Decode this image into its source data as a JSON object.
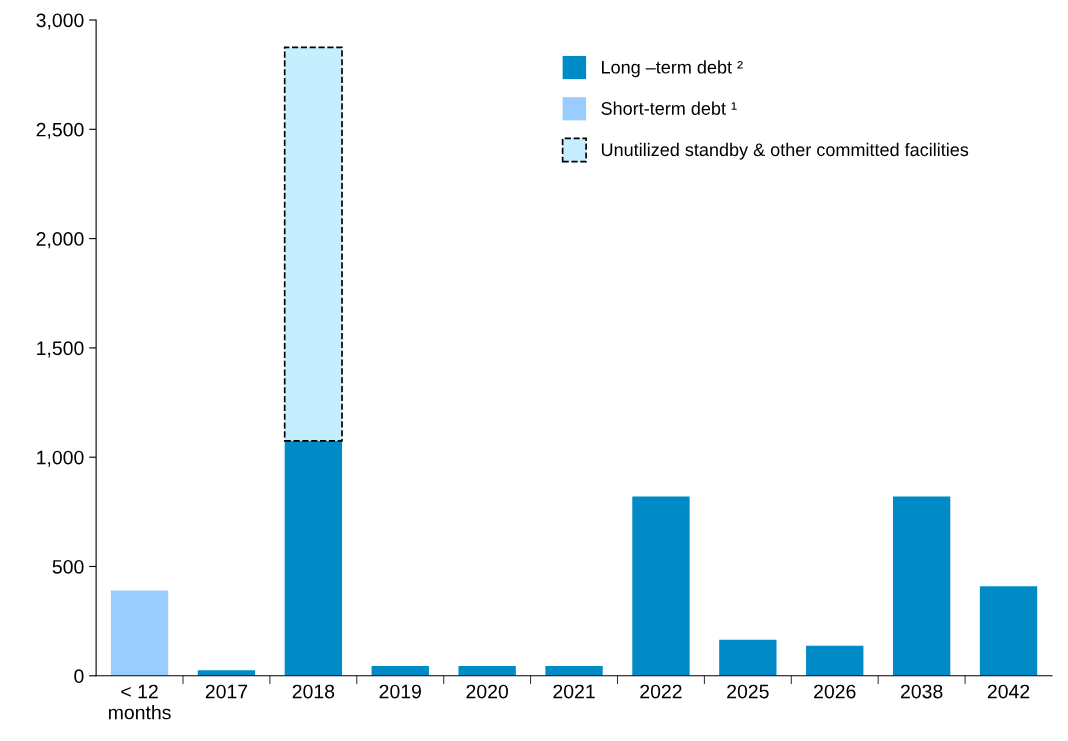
{
  "chart_data": {
    "type": "bar",
    "stacked": true,
    "categories": [
      "< 12\nmonths",
      "2017",
      "2018",
      "2019",
      "2020",
      "2021",
      "2022",
      "2025",
      "2026",
      "2038",
      "2042"
    ],
    "series": [
      {
        "name": "Long –term debt ²",
        "color": "#008bc6",
        "values": [
          null,
          25,
          1075,
          45,
          45,
          45,
          820,
          165,
          137,
          820,
          410
        ]
      },
      {
        "name": "Short-term debt ¹",
        "color": "#99ccff",
        "values": [
          390,
          null,
          null,
          null,
          null,
          null,
          null,
          null,
          null,
          null,
          null
        ]
      },
      {
        "name": "Unutilized standby & other committed facilities",
        "color": "#c5eeff",
        "line_style": "dashed",
        "values": [
          null,
          null,
          1800,
          null,
          null,
          null,
          null,
          null,
          null,
          null,
          null
        ]
      }
    ],
    "ylim": [
      0,
      3000
    ],
    "yticks": [
      0,
      {
        "value": 500,
        "label": "500"
      },
      {
        "value": 1000,
        "label": "1,000"
      },
      {
        "value": 1500,
        "label": "1,500"
      },
      {
        "value": 2000,
        "label": "2,000"
      },
      {
        "value": 2500,
        "label": "2,500"
      },
      {
        "value": 3000,
        "label": "3,000"
      }
    ],
    "grid": false,
    "legend": "top right"
  }
}
